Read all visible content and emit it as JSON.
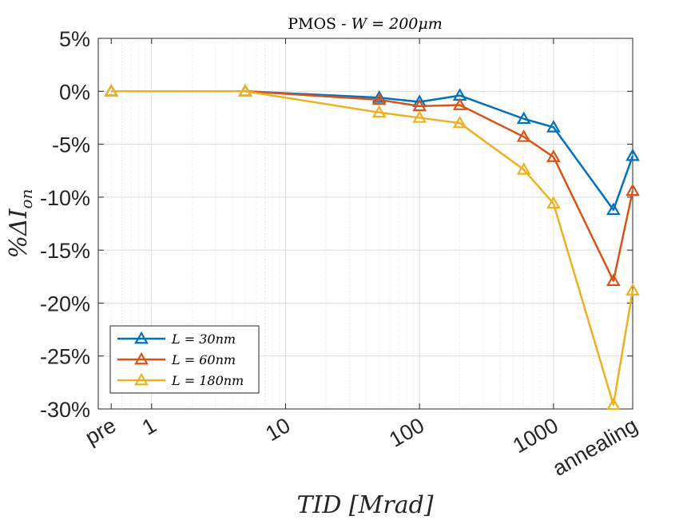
{
  "chart_data": {
    "type": "line",
    "title_prefix": "PMOS - ",
    "title_math": "W = 200μm",
    "xlabel": "TID [Mrad]",
    "ylabel": "%ΔI_on",
    "ylabel_main": "%ΔI",
    "ylabel_sub": "on",
    "x_scale": "log",
    "xlim": [
      0.4,
      3900
    ],
    "ylim": [
      -30,
      5
    ],
    "grid": true,
    "legend_position": "bottom-left",
    "x_ticks": [
      {
        "value": 0.5,
        "label": "pre"
      },
      {
        "value": 1,
        "label": "1"
      },
      {
        "value": 10,
        "label": "10"
      },
      {
        "value": 100,
        "label": "100"
      },
      {
        "value": 1000,
        "label": "1000"
      },
      {
        "value": 3900,
        "label": "annealing"
      }
    ],
    "y_ticks": [
      {
        "value": 5,
        "label": "5%"
      },
      {
        "value": 0,
        "label": "0%"
      },
      {
        "value": -5,
        "label": "-5%"
      },
      {
        "value": -10,
        "label": "-10%"
      },
      {
        "value": -15,
        "label": "-15%"
      },
      {
        "value": -20,
        "label": "-20%"
      },
      {
        "value": -25,
        "label": "-25%"
      },
      {
        "value": -30,
        "label": "-30%"
      }
    ],
    "x": [
      "pre",
      5,
      50,
      100,
      200,
      600,
      1000,
      2800,
      "annealing"
    ],
    "x_numeric": [
      0.5,
      5,
      50,
      100,
      200,
      600,
      1000,
      2800,
      3900
    ],
    "series": [
      {
        "name": "L = 30nm",
        "color": "#0072BD",
        "marker": "triangle",
        "values": [
          0,
          0,
          -0.6,
          -1.0,
          -0.4,
          -2.6,
          -3.4,
          -11.2,
          -6.1
        ]
      },
      {
        "name": "L = 60nm",
        "color": "#D95319",
        "marker": "triangle",
        "values": [
          0,
          0,
          -0.8,
          -1.4,
          -1.3,
          -4.3,
          -6.2,
          -17.9,
          -9.4
        ]
      },
      {
        "name": "L = 180nm",
        "color": "#EDB120",
        "marker": "triangle",
        "values": [
          0,
          0,
          -2.0,
          -2.5,
          -3.0,
          -7.4,
          -10.6,
          -29.6,
          -18.8
        ]
      }
    ]
  }
}
